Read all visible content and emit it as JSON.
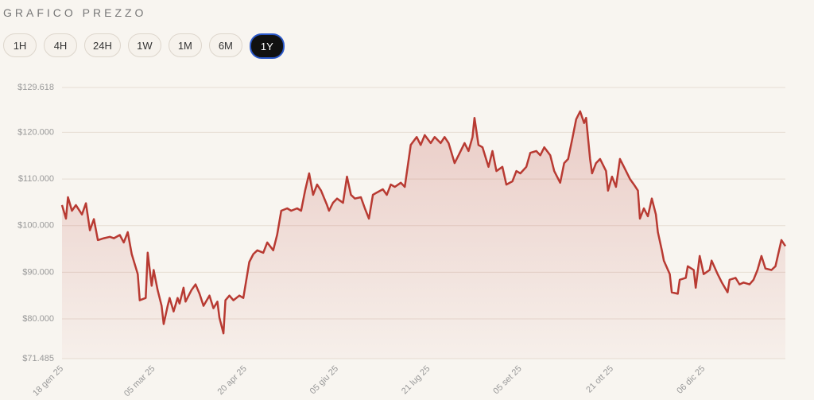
{
  "header": {
    "title": "GRAFICO PREZZO",
    "buttons": [
      {
        "label": "1H"
      },
      {
        "label": "4H"
      },
      {
        "label": "24H"
      },
      {
        "label": "1W"
      },
      {
        "label": "1M"
      },
      {
        "label": "6M"
      },
      {
        "label": "1Y",
        "selected": true
      }
    ]
  },
  "chart_data": {
    "type": "line",
    "color": "#b83a32",
    "grid": true,
    "x": [
      "2025-01-18",
      "2025-01-20",
      "2025-01-21",
      "2025-01-23",
      "2025-01-25",
      "2025-01-28",
      "2025-01-30",
      "2025-02-01",
      "2025-02-03",
      "2025-02-05",
      "2025-02-08",
      "2025-02-11",
      "2025-02-13",
      "2025-02-16",
      "2025-02-18",
      "2025-02-20",
      "2025-02-22",
      "2025-02-25",
      "2025-02-26",
      "2025-03-01",
      "2025-03-02",
      "2025-03-04",
      "2025-03-05",
      "2025-03-07",
      "2025-03-09",
      "2025-03-10",
      "2025-03-12",
      "2025-03-13",
      "2025-03-15",
      "2025-03-17",
      "2025-03-18",
      "2025-03-20",
      "2025-03-21",
      "2025-03-24",
      "2025-03-26",
      "2025-03-28",
      "2025-03-30",
      "2025-04-02",
      "2025-04-04",
      "2025-04-06",
      "2025-04-07",
      "2025-04-09",
      "2025-04-10",
      "2025-04-12",
      "2025-04-14",
      "2025-04-17",
      "2025-04-19",
      "2025-04-22",
      "2025-04-24",
      "2025-04-26",
      "2025-04-29",
      "2025-05-01",
      "2025-05-04",
      "2025-05-06",
      "2025-05-08",
      "2025-05-11",
      "2025-05-13",
      "2025-05-16",
      "2025-05-18",
      "2025-05-20",
      "2025-05-22",
      "2025-05-24",
      "2025-05-26",
      "2025-05-28",
      "2025-05-31",
      "2025-06-01",
      "2025-06-03",
      "2025-06-05",
      "2025-06-08",
      "2025-06-10",
      "2025-06-12",
      "2025-06-14",
      "2025-06-17",
      "2025-06-19",
      "2025-06-21",
      "2025-06-23",
      "2025-06-25",
      "2025-06-28",
      "2025-06-30",
      "2025-07-02",
      "2025-07-04",
      "2025-07-07",
      "2025-07-09",
      "2025-07-11",
      "2025-07-12",
      "2025-07-15",
      "2025-07-17",
      "2025-07-19",
      "2025-07-22",
      "2025-07-24",
      "2025-07-27",
      "2025-07-29",
      "2025-07-31",
      "2025-08-03",
      "2025-08-05",
      "2025-08-08",
      "2025-08-10",
      "2025-08-12",
      "2025-08-13",
      "2025-08-15",
      "2025-08-17",
      "2025-08-20",
      "2025-08-22",
      "2025-08-24",
      "2025-08-27",
      "2025-08-29",
      "2025-09-01",
      "2025-09-03",
      "2025-09-05",
      "2025-09-08",
      "2025-09-10",
      "2025-09-13",
      "2025-09-15",
      "2025-09-17",
      "2025-09-20",
      "2025-09-22",
      "2025-09-25",
      "2025-09-27",
      "2025-09-29",
      "2025-10-01",
      "2025-10-03",
      "2025-10-05",
      "2025-10-07",
      "2025-10-08",
      "2025-10-10",
      "2025-10-11",
      "2025-10-13",
      "2025-10-15",
      "2025-10-18",
      "2025-10-19",
      "2025-10-21",
      "2025-10-23",
      "2025-10-25",
      "2025-10-27",
      "2025-10-30",
      "2025-11-01",
      "2025-11-03",
      "2025-11-04",
      "2025-11-06",
      "2025-11-08",
      "2025-11-10",
      "2025-11-12",
      "2025-11-13",
      "2025-11-15",
      "2025-11-16",
      "2025-11-19",
      "2025-11-20",
      "2025-11-23",
      "2025-11-24",
      "2025-11-27",
      "2025-11-28",
      "2025-12-01",
      "2025-12-02",
      "2025-12-04",
      "2025-12-06",
      "2025-12-09",
      "2025-12-10",
      "2025-12-13",
      "2025-12-15",
      "2025-12-18",
      "2025-12-19",
      "2025-12-22",
      "2025-12-24",
      "2025-12-26",
      "2025-12-29",
      "2025-12-31",
      "2026-01-02",
      "2026-01-04",
      "2026-01-06",
      "2026-01-09",
      "2026-01-11",
      "2026-01-14",
      "2026-01-16"
    ],
    "values": [
      104400,
      101500,
      106100,
      103200,
      104400,
      102400,
      104800,
      99000,
      101400,
      96900,
      97300,
      97600,
      97300,
      98000,
      96400,
      98600,
      93900,
      89600,
      84000,
      84500,
      94200,
      87100,
      90500,
      86200,
      82800,
      78900,
      82800,
      84500,
      81600,
      84500,
      83300,
      86700,
      83700,
      86200,
      87400,
      85400,
      82800,
      85000,
      82300,
      83700,
      80300,
      76900,
      84000,
      85000,
      84000,
      85000,
      84500,
      92200,
      93900,
      94700,
      94200,
      96400,
      94700,
      98100,
      103200,
      103700,
      103200,
      103700,
      103200,
      107500,
      111200,
      106600,
      108800,
      107500,
      104400,
      103200,
      104900,
      105800,
      104900,
      110500,
      106600,
      105800,
      106100,
      103700,
      101500,
      106600,
      107100,
      107800,
      106600,
      108800,
      108300,
      109200,
      108300,
      114300,
      117300,
      119000,
      117300,
      119400,
      117700,
      119000,
      117700,
      119000,
      117700,
      113400,
      115100,
      117700,
      116000,
      119000,
      123100,
      117300,
      116800,
      112600,
      116000,
      111700,
      112600,
      108800,
      109500,
      111700,
      111200,
      112600,
      115600,
      116000,
      115100,
      116800,
      115100,
      111700,
      109200,
      113400,
      114300,
      118500,
      122800,
      124500,
      122000,
      123100,
      114300,
      111200,
      113400,
      114300,
      111700,
      107500,
      110500,
      108300,
      114300,
      112600,
      110000,
      108800,
      107500,
      101500,
      103700,
      102000,
      105800,
      102400,
      98600,
      94700,
      92500,
      89600,
      85700,
      85400,
      88400,
      88800,
      91300,
      90500,
      86700,
      93500,
      89600,
      90500,
      92500,
      89600,
      87900,
      85700,
      88400,
      88800,
      87400,
      87800,
      87400,
      88400,
      90500,
      93500,
      90800,
      90500,
      91300,
      96900,
      95600
    ],
    "xlim": [
      "2025-01-18",
      "2026-01-16"
    ],
    "xticks": [
      {
        "value": "2025-01-18",
        "label": "18 gen 25"
      },
      {
        "value": "2025-03-05",
        "label": "05 mar 25"
      },
      {
        "value": "2025-04-20",
        "label": "20 apr 25"
      },
      {
        "value": "2025-06-05",
        "label": "05 giu 25"
      },
      {
        "value": "2025-07-21",
        "label": "21 lug 25"
      },
      {
        "value": "2025-09-05",
        "label": "05 set 25"
      },
      {
        "value": "2025-10-21",
        "label": "21 ott 25"
      },
      {
        "value": "2025-12-06",
        "label": "06 dic 25"
      }
    ],
    "ylim": [
      71485,
      129618
    ],
    "yticks": [
      {
        "value": 71485,
        "label": "$71.485"
      },
      {
        "value": 80000,
        "label": "$80.000"
      },
      {
        "value": 90000,
        "label": "$90.000"
      },
      {
        "value": 100000,
        "label": "$100.000"
      },
      {
        "value": 110000,
        "label": "$110.000"
      },
      {
        "value": 120000,
        "label": "$120.000"
      },
      {
        "value": 129618,
        "label": "$129.618"
      }
    ]
  }
}
